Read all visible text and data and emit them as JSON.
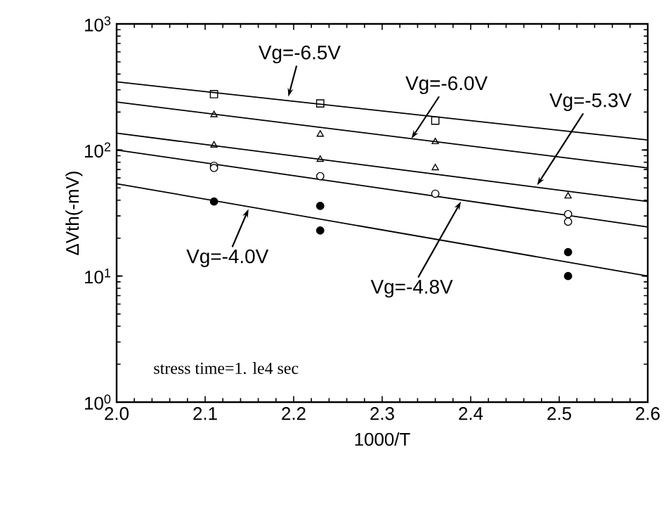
{
  "chart_data": {
    "type": "scatter",
    "xlabel": "1000/T",
    "ylabel": "ΔVth(-mV)",
    "log": "y",
    "xlim": [
      2.0,
      2.6
    ],
    "ylim": [
      1,
      1000
    ],
    "xticks": [
      {
        "value": 2.0,
        "label": "2.0"
      },
      {
        "value": 2.1,
        "label": "2.1"
      },
      {
        "value": 2.2,
        "label": "2.2"
      },
      {
        "value": 2.3,
        "label": "2.3"
      },
      {
        "value": 2.4,
        "label": "2.4"
      },
      {
        "value": 2.5,
        "label": "2.5"
      },
      {
        "value": 2.6,
        "label": "2.6"
      }
    ],
    "yticks": [
      {
        "value": 1,
        "label": "10$^{0}$"
      },
      {
        "value": 10,
        "label": "10$^{1}$"
      },
      {
        "value": 100,
        "label": "10$^{2}$"
      },
      {
        "value": 1000,
        "label": "10$^{3}$"
      }
    ],
    "series": [
      {
        "type": "scatter",
        "marker": "square",
        "color": "#000000",
        "x": [
          2.11,
          2.23,
          2.36
        ],
        "values": [
          277,
          234,
          171
        ]
      },
      {
        "type": "scatter",
        "marker": "triangle",
        "color": "#000000",
        "x": [
          2.11,
          2.23,
          2.36
        ],
        "values": [
          190,
          133,
          116
        ]
      },
      {
        "type": "scatter",
        "marker": "triangle",
        "color": "#000000",
        "x": [
          2.11,
          2.23,
          2.36,
          2.51
        ],
        "values": [
          109,
          84,
          72,
          43
        ]
      },
      {
        "type": "scatter",
        "marker": "circle",
        "color": "#000000",
        "x": [
          2.11,
          2.11,
          2.23,
          2.36,
          2.51,
          2.51
        ],
        "values": [
          75,
          72,
          62,
          45,
          31,
          27
        ]
      },
      {
        "type": "scatter",
        "marker": "circle",
        "color": "#000000",
        "x": [
          2.11,
          2.23,
          2.23,
          2.51,
          2.51
        ],
        "values": [
          39,
          36,
          23,
          15.5,
          10
        ]
      },
      {
        "type": "line",
        "marker": "none",
        "line_style": "solid",
        "color": "#000000",
        "x": [
          2.0,
          2.6
        ],
        "values": [
          347,
          120
        ]
      },
      {
        "type": "line",
        "marker": "none",
        "line_style": "solid",
        "color": "#000000",
        "x": [
          2.0,
          2.6
        ],
        "values": [
          240,
          72
        ]
      },
      {
        "type": "line",
        "marker": "none",
        "line_style": "solid",
        "color": "#000000",
        "x": [
          2.0,
          2.6
        ],
        "values": [
          136,
          39
        ]
      },
      {
        "type": "line",
        "marker": "none",
        "line_style": "solid",
        "color": "#000000",
        "x": [
          2.0,
          2.6
        ],
        "values": [
          100,
          24.5
        ]
      },
      {
        "type": "line",
        "marker": "none",
        "line_style": "solid",
        "color": "#000000",
        "x": [
          2.0,
          2.6
        ],
        "values": [
          54,
          10
        ]
      }
    ],
    "annotations": [
      {
        "text": "Vg=-6.5V",
        "x": 2.194,
        "y": 265
      },
      {
        "text": "Vg=-6.0V",
        "x": 2.333,
        "y": 123
      },
      {
        "text": "Vg=-5.3V",
        "x": 2.475,
        "y": 52.6
      },
      {
        "text": "Vg=-4.0V",
        "x": 2.149,
        "y": 34
      },
      {
        "text": "Vg=-4.8V",
        "x": 2.389,
        "y": 39
      },
      "stress time=1. le4 sec"
    ]
  }
}
